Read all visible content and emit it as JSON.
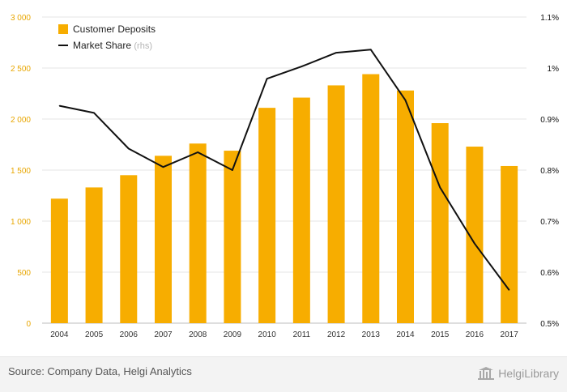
{
  "chart_data": {
    "type": "bar",
    "categories": [
      "2004",
      "2005",
      "2006",
      "2007",
      "2008",
      "2009",
      "2010",
      "2011",
      "2012",
      "2013",
      "2014",
      "2015",
      "2016",
      "2017"
    ],
    "series": [
      {
        "name": "Customer Deposits",
        "type": "bar",
        "axis": "left",
        "color": "#f7ad00",
        "values": [
          1220,
          1330,
          1450,
          1640,
          1760,
          1690,
          2110,
          2210,
          2330,
          2440,
          2280,
          1960,
          1730,
          1540
        ]
      },
      {
        "name": "Market Share",
        "legend_suffix": "(rhs)",
        "type": "line",
        "axis": "right",
        "color": "#111111",
        "values": [
          0.926,
          0.912,
          0.842,
          0.806,
          0.835,
          0.8,
          0.979,
          1.003,
          1.03,
          1.036,
          0.937,
          0.766,
          0.656,
          0.565
        ]
      }
    ],
    "left_axis": {
      "ylim": [
        0,
        3000
      ],
      "ticks": [
        0,
        500,
        1000,
        1500,
        2000,
        2500,
        3000
      ],
      "tick_labels": [
        "0",
        "500",
        "1 000",
        "1 500",
        "2 000",
        "2 500",
        "3 000"
      ],
      "label_color": "#e8a600"
    },
    "right_axis": {
      "ylim": [
        0.5,
        1.1
      ],
      "ticks": [
        0.5,
        0.6,
        0.7,
        0.8,
        0.9,
        1.0,
        1.1
      ],
      "tick_labels": [
        "0.5%",
        "0.6%",
        "0.7%",
        "0.8%",
        "0.9%",
        "1%",
        "1.1%"
      ],
      "label_color": "#111111"
    },
    "grid": true,
    "legend_position": "top-left",
    "title": "",
    "xlabel": "",
    "ylabel": ""
  },
  "footer": {
    "source": "Source: Company Data, Helgi Analytics",
    "brand": "HelgiLibrary"
  }
}
